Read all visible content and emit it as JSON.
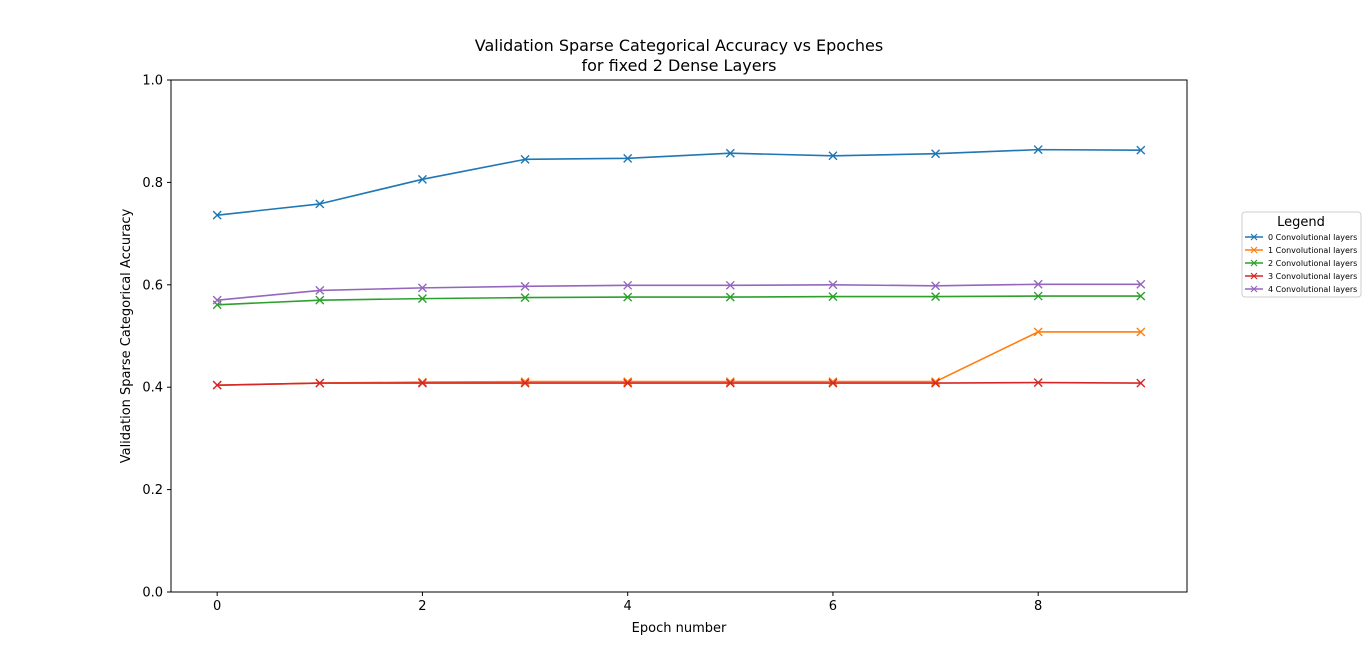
{
  "chart_data": {
    "type": "line",
    "title_line1": "Validation Sparse Categorical Accuracy vs Epoches",
    "title_line2": "for fixed 2 Dense Layers",
    "xlabel": "Epoch number",
    "ylabel": "Validation Sparse Categorical Accuracy",
    "xlim": [
      -0.45,
      9.45
    ],
    "ylim": [
      0.0,
      1.0
    ],
    "x_ticks": [
      0,
      2,
      4,
      6,
      8
    ],
    "y_ticks": [
      0.0,
      0.2,
      0.4,
      0.6,
      0.8,
      1.0
    ],
    "grid": false,
    "marker": "x",
    "x": [
      0,
      1,
      2,
      3,
      4,
      5,
      6,
      7,
      8,
      9
    ],
    "legend": {
      "title": "Legend",
      "placement": "center-right outside"
    },
    "series": [
      {
        "name": "0 Convolutional layers",
        "color": "#1f77b4",
        "values": [
          0.736,
          0.758,
          0.806,
          0.845,
          0.847,
          0.857,
          0.852,
          0.856,
          0.864,
          0.863
        ]
      },
      {
        "name": "1 Convolutional layers",
        "color": "#ff7f0e",
        "values": [
          0.404,
          0.408,
          0.41,
          0.411,
          0.411,
          0.411,
          0.411,
          0.411,
          0.508,
          0.508
        ]
      },
      {
        "name": "2 Convolutional layers",
        "color": "#2ca02c",
        "values": [
          0.561,
          0.57,
          0.573,
          0.575,
          0.576,
          0.576,
          0.577,
          0.577,
          0.578,
          0.578
        ]
      },
      {
        "name": "3 Convolutional layers",
        "color": "#d62728",
        "values": [
          0.404,
          0.408,
          0.408,
          0.408,
          0.408,
          0.408,
          0.408,
          0.408,
          0.409,
          0.408
        ]
      },
      {
        "name": "4 Convolutional layers",
        "color": "#9467bd",
        "values": [
          0.57,
          0.589,
          0.594,
          0.597,
          0.599,
          0.599,
          0.6,
          0.598,
          0.601,
          0.601
        ]
      }
    ]
  }
}
